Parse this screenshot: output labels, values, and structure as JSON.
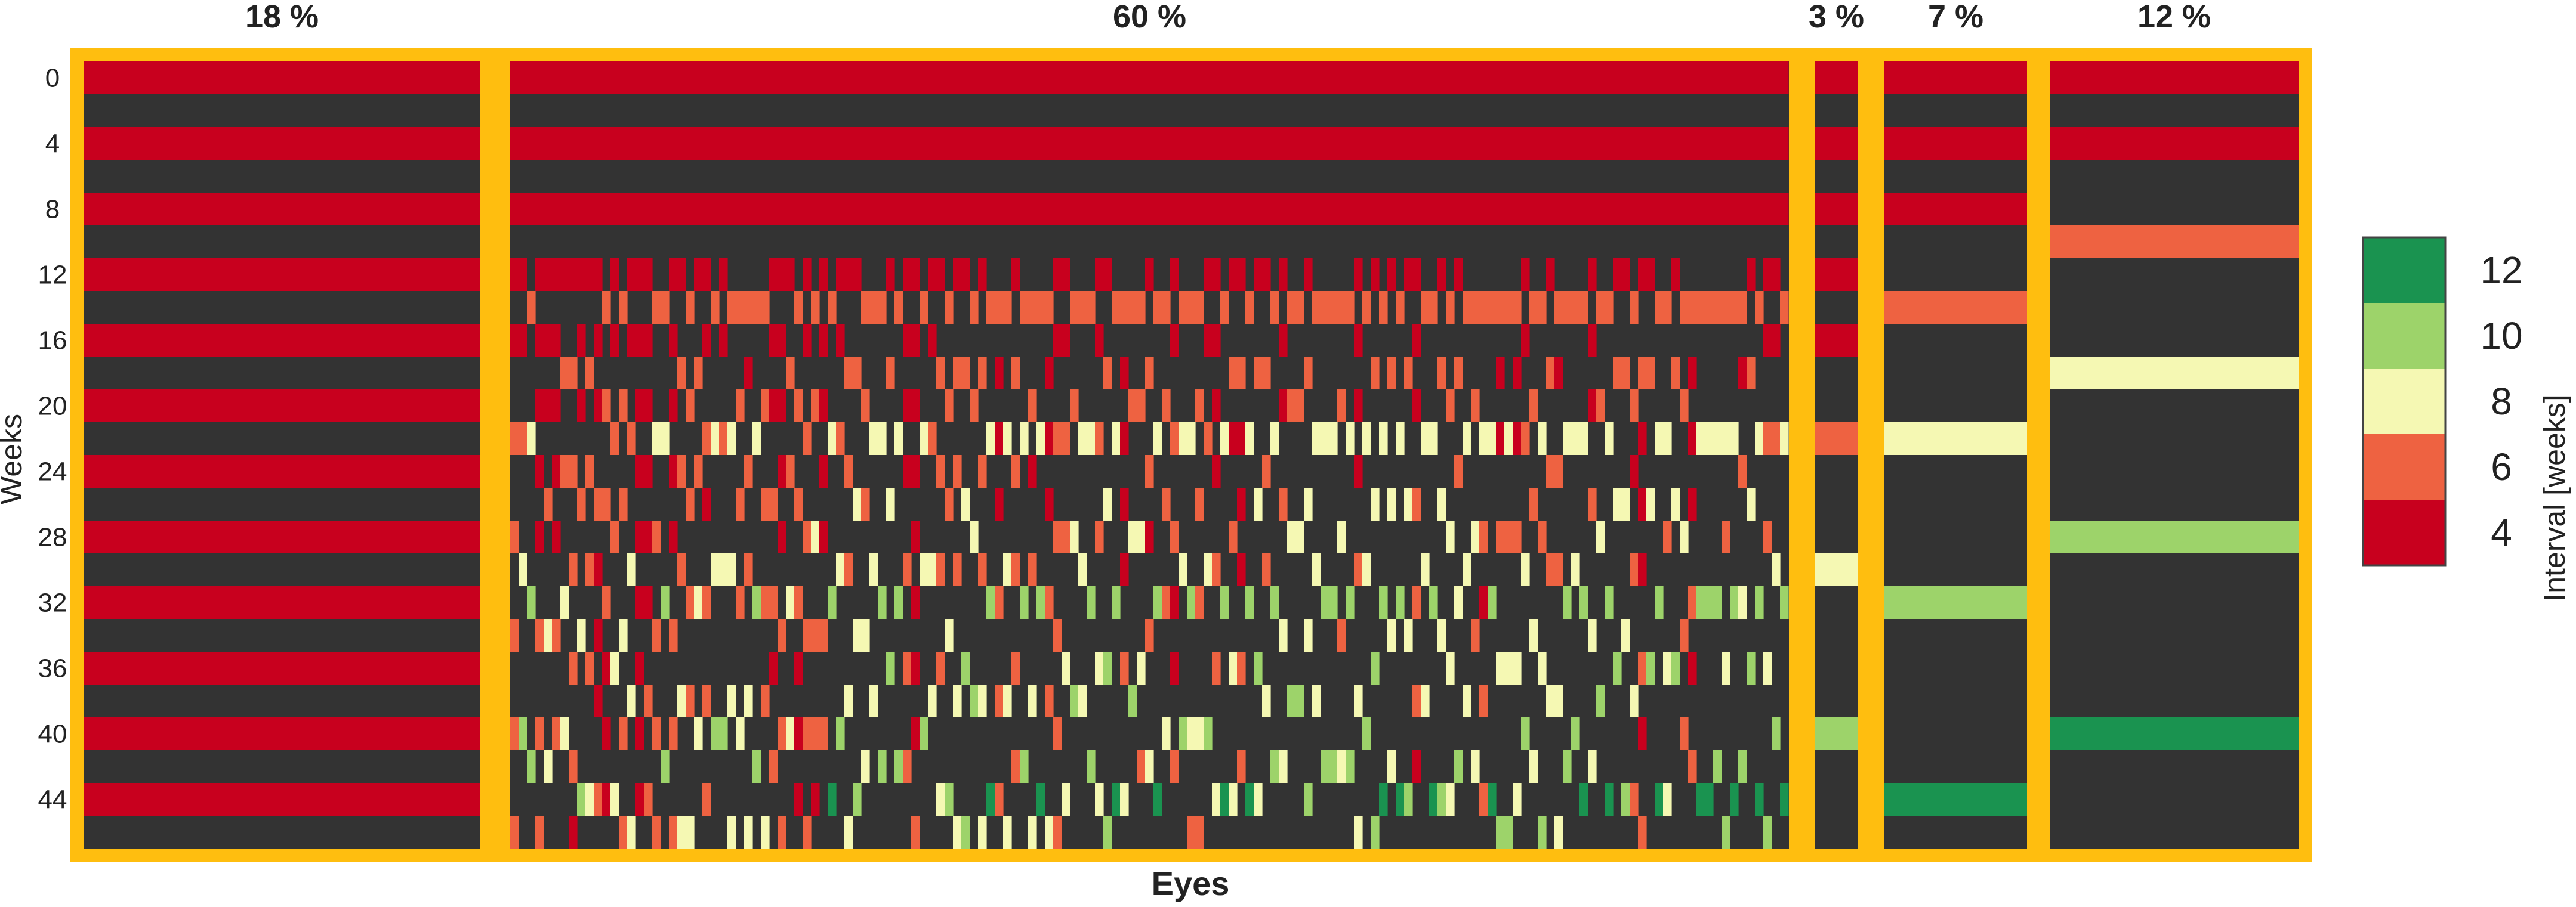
{
  "chart_data": {
    "type": "heatmap",
    "xlabel": "Eyes",
    "ylabel": "Weeks",
    "y_ticks": [
      "0",
      "4",
      "8",
      "12",
      "16",
      "20",
      "24",
      "28",
      "32",
      "36",
      "40",
      "44"
    ],
    "weeks": [
      0,
      2,
      4,
      6,
      8,
      10,
      12,
      14,
      16,
      18,
      20,
      22,
      24,
      26,
      28,
      30,
      32,
      34,
      36,
      38,
      40,
      42,
      44,
      46
    ],
    "colorbar": {
      "label": "Interval [weeks]",
      "ticks": [
        "4",
        "6",
        "8",
        "10",
        "12"
      ],
      "levels": [
        4,
        6,
        8,
        10,
        12
      ],
      "colors": [
        "#c8001e",
        "#ee6241",
        "#f5f8b3",
        "#9dd36a",
        "#1a9350"
      ]
    },
    "no_injection_color": "#333333",
    "frame_color": "#ffbe0f",
    "groups": [
      {
        "pct_label": "18 %",
        "events": [
          {
            "weeks": [
              0,
              4,
              8,
              12,
              16,
              20,
              24,
              28,
              32,
              36,
              40,
              44
            ],
            "interval": 4
          }
        ]
      },
      {
        "pct_label": "60 %",
        "events": [
          {
            "weeks": [
              0,
              4
            ],
            "interval": 4
          },
          {
            "weeks": [
              8,
              12,
              16,
              20,
              24,
              28,
              32,
              36,
              40,
              44
            ],
            "interval": "4-12"
          }
        ]
      },
      {
        "pct_label": "3 %",
        "events": [
          {
            "weeks": [
              0,
              4,
              8,
              12,
              16
            ],
            "interval": 4
          },
          {
            "weeks": [
              22
            ],
            "interval": 6
          },
          {
            "weeks": [
              30
            ],
            "interval": 8
          },
          {
            "weeks": [
              40
            ],
            "interval": 10
          }
        ]
      },
      {
        "pct_label": "7 %",
        "events": [
          {
            "weeks": [
              0,
              4,
              8
            ],
            "interval": 4
          },
          {
            "weeks": [
              14
            ],
            "interval": 6
          },
          {
            "weeks": [
              22
            ],
            "interval": 8
          },
          {
            "weeks": [
              32
            ],
            "interval": 10
          },
          {
            "weeks": [
              44
            ],
            "interval": 12
          }
        ]
      },
      {
        "pct_label": "12 %",
        "events": [
          {
            "weeks": [
              0,
              4
            ],
            "interval": 4
          },
          {
            "weeks": [
              10
            ],
            "interval": 6
          },
          {
            "weeks": [
              18
            ],
            "interval": 8
          },
          {
            "weeks": [
              28
            ],
            "interval": 10
          },
          {
            "weeks": [
              40
            ],
            "interval": 12
          }
        ]
      }
    ]
  }
}
